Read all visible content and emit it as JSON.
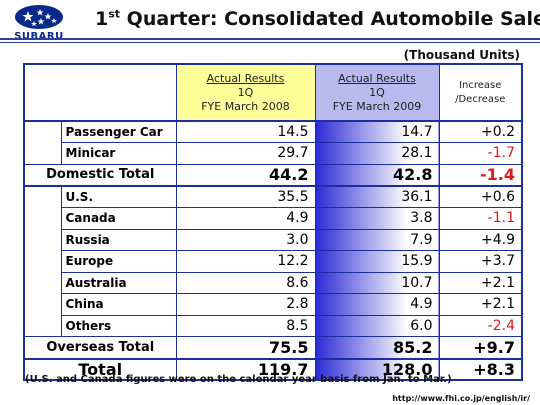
{
  "brand": {
    "name": "SUBARU",
    "color": "#0a2a8a"
  },
  "title": {
    "prefix": "1",
    "sup": "st",
    "rest": " Quarter: Consolidated Automobile Sales"
  },
  "units": "(Thousand Units)",
  "columns": {
    "fy2008": {
      "l1": "Actual Results",
      "l2": "1Q",
      "l3": "FYE March 2008"
    },
    "fy2009": {
      "l1": "Actual Results",
      "l2": "1Q",
      "l3": "FYE March 2009"
    },
    "change": {
      "l1": "Increase",
      "l2": "/Decrease"
    }
  },
  "domestic": {
    "rows": [
      {
        "label": "Passenger Car",
        "fy2008": "14.5",
        "fy2009": "14.7",
        "change": "+0.2",
        "negative": false
      },
      {
        "label": "Minicar",
        "fy2008": "29.7",
        "fy2009": "28.1",
        "change": "-1.7",
        "negative": true
      }
    ],
    "total": {
      "label": "Domestic Total",
      "fy2008": "44.2",
      "fy2009": "42.8",
      "change": "-1.4",
      "negative": true
    }
  },
  "overseas": {
    "rows": [
      {
        "label": "U.S.",
        "fy2008": "35.5",
        "fy2009": "36.1",
        "change": "+0.6",
        "negative": false
      },
      {
        "label": "Canada",
        "fy2008": "4.9",
        "fy2009": "3.8",
        "change": "-1.1",
        "negative": true
      },
      {
        "label": "Russia",
        "fy2008": "3.0",
        "fy2009": "7.9",
        "change": "+4.9",
        "negative": false
      },
      {
        "label": "Europe",
        "fy2008": "12.2",
        "fy2009": "15.9",
        "change": "+3.7",
        "negative": false
      },
      {
        "label": "Australia",
        "fy2008": "8.6",
        "fy2009": "10.7",
        "change": "+2.1",
        "negative": false
      },
      {
        "label": "China",
        "fy2008": "2.8",
        "fy2009": "4.9",
        "change": "+2.1",
        "negative": false
      },
      {
        "label": "Others",
        "fy2008": "8.5",
        "fy2009": "6.0",
        "change": "-2.4",
        "negative": true
      }
    ],
    "total": {
      "label": "Overseas Total",
      "fy2008": "75.5",
      "fy2009": "85.2",
      "change": "+9.7",
      "negative": false
    }
  },
  "grand_total": {
    "label": "Total",
    "fy2008": "119.7",
    "fy2009": "128.0",
    "change": "+8.3",
    "negative": false
  },
  "note": "(U.S. and Canada figures were on the calendar year basis from Jan. to Mar.)",
  "url": "http://www.fhi.co.jp/english/ir/",
  "colors": {
    "accent": "#1c2f9e",
    "negative": "#e01818",
    "header_2008": "#ffff99",
    "header_2009": "#b9b9ee"
  }
}
